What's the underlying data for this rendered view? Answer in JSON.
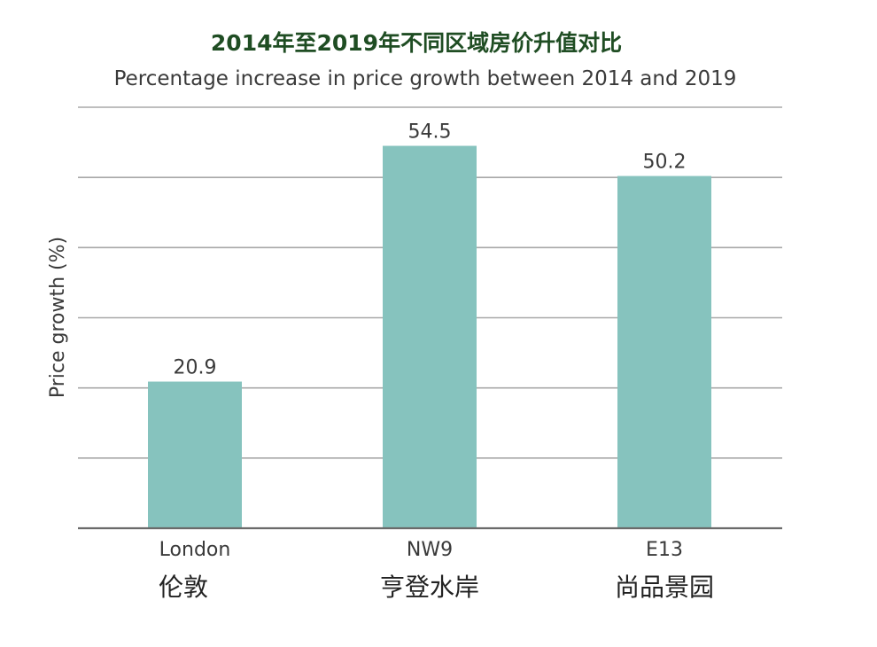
{
  "chart_data": {
    "type": "bar",
    "title": "2014年至2019年不同区域房价升值对比",
    "subtitle": "Percentage increase in price growth between 2014 and 2019",
    "ylabel": "Price growth (%)",
    "xlabel": "",
    "categories": [
      "London",
      "NW9",
      "E13"
    ],
    "categories_cn": [
      "伦敦",
      "亨登水岸",
      "尚品景园"
    ],
    "values": [
      20.9,
      54.5,
      50.2
    ],
    "value_labels": [
      "20.9",
      "54.5",
      "50.2"
    ],
    "ylim": [
      0,
      60
    ],
    "yticks": [
      0,
      10,
      20,
      30,
      40,
      50,
      60
    ],
    "ytick_labels_shown": false,
    "grid": true,
    "colors": {
      "bar": "#86c3be",
      "title": "#1f4d23",
      "text": "#3a3a3a",
      "grid": "#a8a8a8",
      "baseline": "#6a6a6a"
    }
  }
}
